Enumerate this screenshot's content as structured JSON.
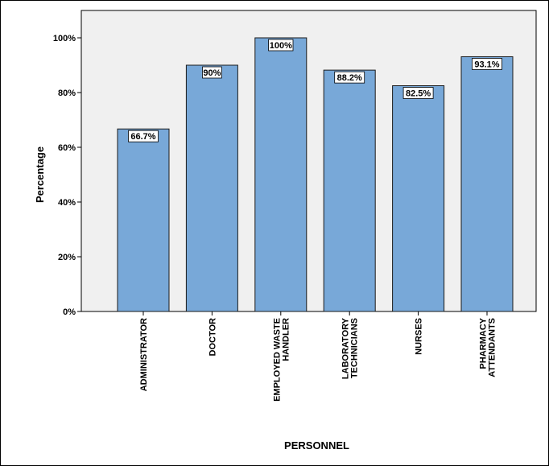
{
  "chart_data": {
    "type": "bar",
    "categories": [
      [
        "ADMINISTRATOR"
      ],
      [
        "DOCTOR"
      ],
      [
        "EMPLOYED WASTE",
        "HANDLER"
      ],
      [
        "LABORATORY",
        "TECHNICIANS"
      ],
      [
        "NURSES"
      ],
      [
        "PHARMACY",
        "ATTENDANTS"
      ]
    ],
    "values": [
      66.7,
      90,
      100,
      88.2,
      82.5,
      93.1
    ],
    "data_labels": [
      "66.7%",
      "90%",
      "100%",
      "88.2%",
      "82.5%",
      "93.1%"
    ],
    "xlabel": "PERSONNEL",
    "ylabel": "Percentage",
    "ylim": [
      0,
      100
    ],
    "yticks": [
      0,
      20,
      40,
      60,
      80,
      100
    ],
    "ytick_labels": [
      "0%",
      "20%",
      "40%",
      "60%",
      "80%",
      "100%"
    ],
    "grid": false,
    "colors": {
      "bar_fill": "#78a8d8",
      "bar_stroke": "#1a1a1a",
      "plot_background": "#f0f0f0",
      "data_label_background": "#ffffff"
    }
  }
}
